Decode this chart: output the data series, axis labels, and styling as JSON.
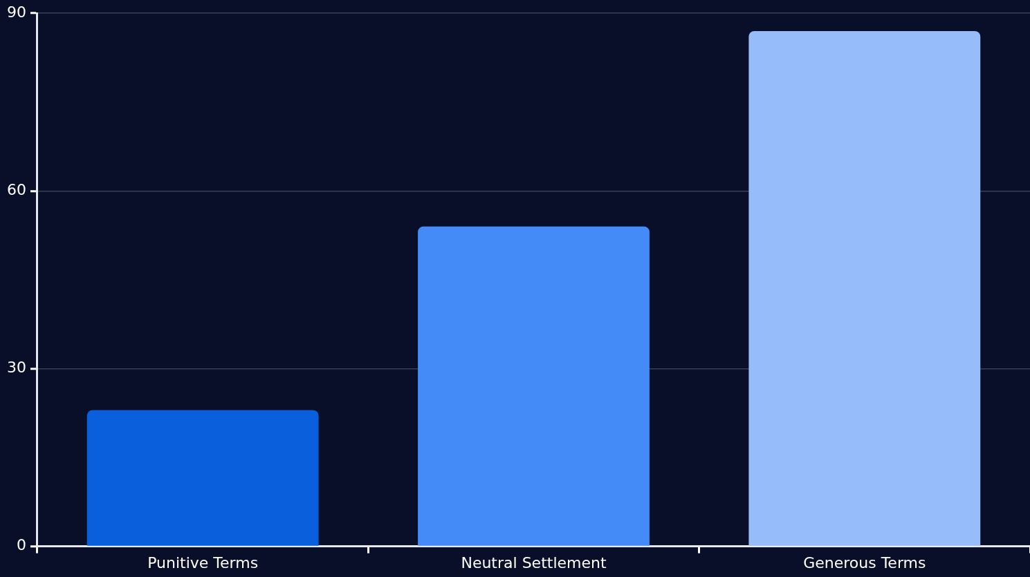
{
  "chart_data": {
    "type": "bar",
    "categories": [
      "Punitive Terms",
      "Neutral Settlement",
      "Generous Terms"
    ],
    "values": [
      23,
      54,
      87
    ],
    "colors": [
      "#0a5fdc",
      "#448bf7",
      "#96bdfa"
    ],
    "ylim": [
      0,
      90
    ],
    "yticks": [
      0,
      30,
      60,
      90
    ],
    "grid": "y",
    "legend": false
  }
}
